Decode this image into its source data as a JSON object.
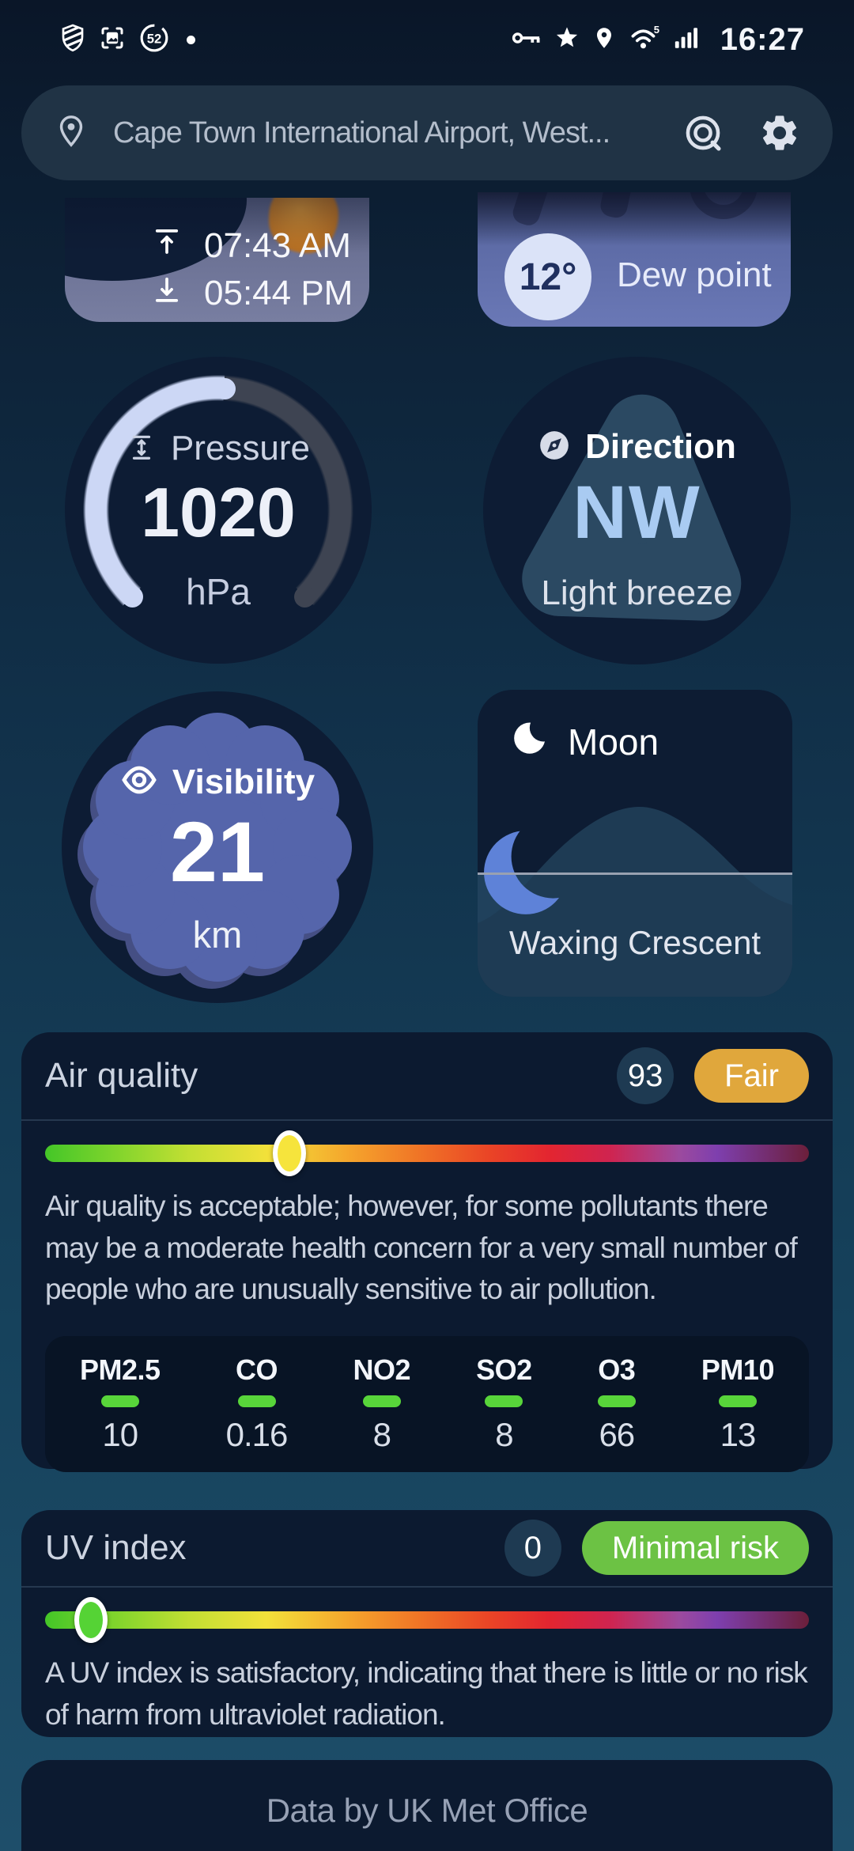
{
  "status_bar": {
    "time": "16:27",
    "counter_badge": "52",
    "wifi_generation": "5",
    "left_icons": [
      "shield",
      "screenshot",
      "counter-badge",
      "dot"
    ],
    "right_icons": [
      "vpn-key",
      "star",
      "location",
      "wifi",
      "signal"
    ]
  },
  "search_bar": {
    "location_text": "Cape Town International Airport, West..."
  },
  "sun_card": {
    "sunrise_time": "07:43 AM",
    "sunset_time": "05:44 PM"
  },
  "dew_point_card": {
    "value": "12°",
    "label": "Dew point"
  },
  "pressure_card": {
    "label": "Pressure",
    "value": "1020",
    "unit": "hPa",
    "gauge_percent": 51
  },
  "direction_card": {
    "label": "Direction",
    "value": "NW",
    "description": "Light breeze"
  },
  "visibility_card": {
    "label": "Visibility",
    "value": "21",
    "unit": "km"
  },
  "moon_card": {
    "label": "Moon",
    "phase": "Waxing Crescent"
  },
  "air_quality_card": {
    "title": "Air quality",
    "index": "93",
    "rating": "Fair",
    "rating_color": "#e0a73c",
    "slider_percent": 32,
    "description": "Air quality is acceptable; however, for some pollutants there may be a moderate health concern for a very small number of people who are unusually sensitive to air pollution.",
    "pollutants": [
      {
        "name": "PM2.5",
        "value": "10"
      },
      {
        "name": "CO",
        "value": "0.16"
      },
      {
        "name": "NO2",
        "value": "8"
      },
      {
        "name": "SO2",
        "value": "8"
      },
      {
        "name": "O3",
        "value": "66"
      },
      {
        "name": "PM10",
        "value": "13"
      }
    ]
  },
  "uv_card": {
    "title": "UV index",
    "index": "0",
    "rating": "Minimal risk",
    "rating_color": "#6cc244",
    "slider_percent": 6,
    "description": "A UV index is satisfactory, indicating that there is little or no risk of harm from ultraviolet radiation."
  },
  "footer": {
    "attribution": "Data by UK Met Office"
  },
  "colors": {
    "pollutant_indicator": "#58d53a",
    "aq_thumb": "#f6e43c",
    "uv_thumb": "#55d335",
    "direction_value": "#a9cbf2",
    "gauge_fill": "#ccd7f5"
  }
}
